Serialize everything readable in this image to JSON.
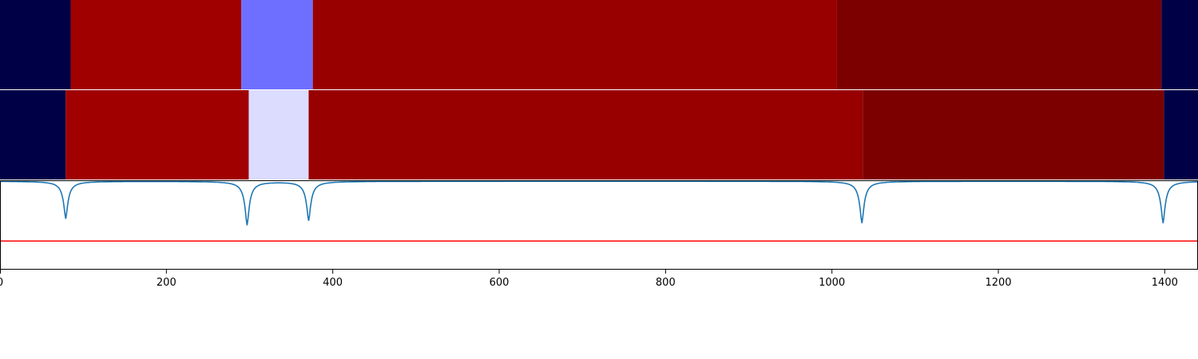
{
  "chart_data": {
    "type": "heatmap",
    "xlim": [
      0,
      1440
    ],
    "x_ticks": [
      0,
      200,
      400,
      600,
      800,
      1000,
      1200,
      1400
    ],
    "x_tick_labels": [
      "0",
      "200",
      "400",
      "600",
      "800",
      "1000",
      "1200",
      "1400"
    ],
    "segment_rows": [
      {
        "segments": [
          {
            "start": 0,
            "end": 85,
            "color": "#000046"
          },
          {
            "start": 85,
            "end": 290,
            "color": "#a00000"
          },
          {
            "start": 290,
            "end": 376,
            "color": "#6f6fff"
          },
          {
            "start": 376,
            "end": 1006,
            "color": "#980000"
          },
          {
            "start": 1006,
            "end": 1396,
            "color": "#7d0000"
          },
          {
            "start": 1396,
            "end": 1440,
            "color": "#000046"
          }
        ]
      },
      {
        "segments": [
          {
            "start": 0,
            "end": 79,
            "color": "#000046"
          },
          {
            "start": 79,
            "end": 299,
            "color": "#a00000"
          },
          {
            "start": 299,
            "end": 371,
            "color": "#dcdcff"
          },
          {
            "start": 371,
            "end": 1037,
            "color": "#980000"
          },
          {
            "start": 1037,
            "end": 1399,
            "color": "#7d0000"
          },
          {
            "start": 1399,
            "end": 1440,
            "color": "#000046"
          }
        ]
      }
    ],
    "line_panel": {
      "ylim": [
        0,
        1
      ],
      "baseline": 0.99,
      "threshold": 0.32,
      "threshold_color": "#ff0000",
      "line_color": "#1f77b4",
      "dips": [
        {
          "x": 79,
          "min": 0.57
        },
        {
          "x": 297,
          "min": 0.5
        },
        {
          "x": 371,
          "min": 0.55
        },
        {
          "x": 1036,
          "min": 0.52
        },
        {
          "x": 1398,
          "min": 0.52
        }
      ]
    }
  }
}
